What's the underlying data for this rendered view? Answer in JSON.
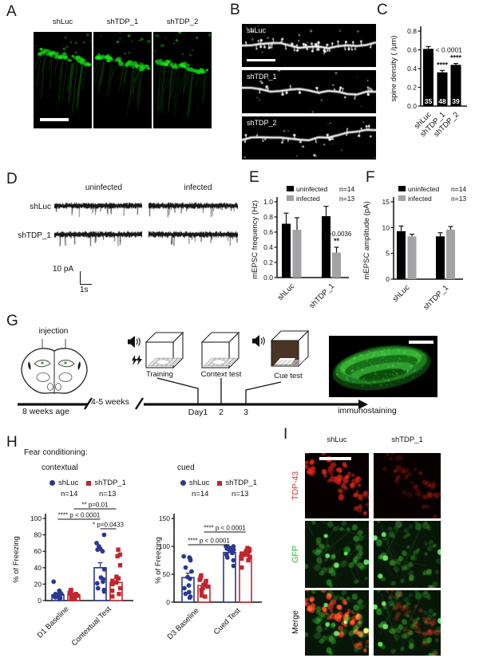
{
  "colors": {
    "blue": "#2b3990",
    "red": "#c1272d",
    "gray": "#a3a3a6",
    "black": "#000000",
    "green_label": "#2db52d",
    "red_label": "#e03232"
  },
  "panels": {
    "A": {
      "letter": "A",
      "titles": [
        "shLuc",
        "shTDP_1",
        "shTDP_2"
      ]
    },
    "B": {
      "letter": "B",
      "labels": [
        "shLuc",
        "shTDP_1",
        "shTDP_2"
      ]
    },
    "C": {
      "letter": "C"
    },
    "D": {
      "letter": "D",
      "col_labels": [
        "uninfected",
        "infected"
      ],
      "row_labels": [
        "shLuc",
        "shTDP_1"
      ],
      "scale_v": "10 pA",
      "scale_h": "1s"
    },
    "E": {
      "letter": "E"
    },
    "F": {
      "letter": "F"
    },
    "G": {
      "letter": "G",
      "injection": "injection",
      "age": "8 weeks age",
      "interval": "4-5 weeks",
      "boxes": [
        "Training",
        "Context test",
        "Cue test"
      ],
      "days": [
        "Day1",
        "2",
        "3"
      ],
      "immuno": "immunostaining"
    },
    "H": {
      "letter": "H",
      "title": "Fear conditioning:",
      "sub_left": "contextual",
      "sub_right": "cued",
      "legend": {
        "shLuc": "shLuc",
        "shTDP": "shTDP_1",
        "n_shLuc": "n=14",
        "n_shTDP": "n=13"
      }
    },
    "I": {
      "letter": "I",
      "col_titles": [
        "shLuc",
        "shTDP_1"
      ],
      "row_labels": [
        "TDP-43",
        "GFP",
        "Merge"
      ]
    }
  },
  "chart_data": [
    {
      "id": "chartC",
      "type": "bar",
      "ylabel": "spine density ( /μm)",
      "ylim": [
        0,
        0.8
      ],
      "yticks": [
        0,
        0.2,
        0.4,
        0.6,
        0.8
      ],
      "ytick_labels": [
        "0.0",
        "0.2",
        "0.4",
        "0.6",
        "0.8"
      ],
      "categories": [
        "shLuc",
        "shTDP_1",
        "shTDP_2"
      ],
      "values": [
        0.61,
        0.36,
        0.44
      ],
      "errors": [
        0.025,
        0.02,
        0.015
      ],
      "bar_labels": [
        "35",
        "48",
        "39"
      ],
      "bar_color": "#000000",
      "annotations": {
        "p_text": "p < 0.0001",
        "stars": [
          "",
          "****",
          "****"
        ]
      }
    },
    {
      "id": "chartE",
      "type": "grouped_bar",
      "ylabel": "mEPSC frequency (Hz)",
      "ylim": [
        0,
        1.0
      ],
      "yticks": [
        0,
        0.2,
        0.4,
        0.6,
        0.8,
        1.0
      ],
      "ytick_labels": [
        "0.0",
        "0.2",
        "0.4",
        "0.6",
        "0.8",
        "1.0"
      ],
      "categories": [
        "shLuc",
        "shTDP_1"
      ],
      "series": [
        {
          "name": "uninfected",
          "n": "n=14",
          "color": "#000000",
          "values": [
            0.71,
            0.81
          ],
          "errors": [
            0.14,
            0.13
          ]
        },
        {
          "name": "infected",
          "n": "n=13",
          "color": "#a3a3a6",
          "values": [
            0.63,
            0.33
          ],
          "errors": [
            0.16,
            0.07
          ]
        }
      ],
      "annotation": {
        "text": "p=0.0036",
        "stars": "**",
        "cat": 1,
        "series": 1
      }
    },
    {
      "id": "chartF",
      "type": "grouped_bar",
      "ylabel": "mEPSC amplitude (pA)",
      "ylim": [
        0,
        15
      ],
      "yticks": [
        0,
        5,
        10,
        15
      ],
      "ytick_labels": [
        "0",
        "5",
        "10",
        "15"
      ],
      "categories": [
        "shLuc",
        "shTDP_1"
      ],
      "series": [
        {
          "name": "uninfected",
          "n": "n=14",
          "color": "#000000",
          "values": [
            9.3,
            8.3
          ],
          "errors": [
            1.0,
            0.7
          ]
        },
        {
          "name": "infected",
          "n": "n=13",
          "color": "#a3a3a6",
          "values": [
            8.3,
            9.6
          ],
          "errors": [
            0.4,
            0.6
          ]
        }
      ],
      "annotation": null
    },
    {
      "id": "chartH1",
      "type": "scatter_bar",
      "ylabel": "% of Freezing",
      "ylim": [
        0,
        100
      ],
      "yticks": [
        0,
        20,
        40,
        60,
        80,
        100
      ],
      "ytick_labels": [
        "0",
        "20",
        "40",
        "60",
        "80",
        "100"
      ],
      "categories": [
        "D1 Baseline",
        "Contextual Test"
      ],
      "series": [
        {
          "name": "shLuc",
          "marker": "circle",
          "color": "#2b3990",
          "means": [
            7,
            40
          ],
          "errors": [
            1.5,
            6
          ],
          "points": [
            [
              2,
              3,
              4,
              5,
              5,
              6,
              7,
              7,
              8,
              8,
              9,
              10,
              12,
              23
            ],
            [
              11,
              13,
              15,
              21,
              23,
              26,
              28,
              38,
              60,
              62,
              63,
              66,
              70,
              80
            ]
          ]
        },
        {
          "name": "shTDP_1",
          "marker": "square",
          "color": "#c1272d",
          "means": [
            7,
            22
          ],
          "errors": [
            1.5,
            5
          ],
          "points": [
            [
              2,
              2,
              3,
              4,
              5,
              6,
              7,
              7,
              8,
              9,
              10,
              12,
              13
            ],
            [
              5,
              8,
              12,
              15,
              20,
              22,
              24,
              27,
              29,
              43,
              54,
              56,
              62
            ]
          ]
        }
      ],
      "sig": [
        {
          "text": "** p=0.01",
          "a": [
            0,
            1
          ],
          "b": [
            1,
            1
          ],
          "row": 0
        },
        {
          "text": "**** p < 0.0001",
          "a": [
            0,
            0
          ],
          "b": [
            1,
            0
          ],
          "row": 1
        },
        {
          "text": "* p=0.0433",
          "a": [
            1,
            0
          ],
          "b": [
            1,
            1
          ],
          "row": 2
        }
      ]
    },
    {
      "id": "chartH2",
      "type": "scatter_bar",
      "ylabel": "% of Freezing",
      "ylim": [
        0,
        150
      ],
      "yticks": [
        0,
        50,
        100,
        150
      ],
      "ytick_labels": [
        "0",
        "50",
        "100",
        "150"
      ],
      "categories": [
        "D3 Baseline",
        "Cued Test"
      ],
      "series": [
        {
          "name": "shLuc",
          "marker": "circle",
          "color": "#2b3990",
          "means": [
            44,
            89
          ],
          "errors": [
            8,
            3
          ],
          "points": [
            [
              8,
              10,
              15,
              18,
              25,
              30,
              42,
              45,
              55,
              62,
              75,
              78,
              80,
              82
            ],
            [
              65,
              75,
              80,
              85,
              88,
              90,
              92,
              94,
              95,
              96,
              97,
              98,
              100,
              100
            ]
          ]
        },
        {
          "name": "shTDP_1",
          "marker": "square",
          "color": "#c1272d",
          "means": [
            30,
            84
          ],
          "errors": [
            4,
            3
          ],
          "points": [
            [
              10,
              12,
              18,
              22,
              25,
              28,
              30,
              35,
              38,
              40,
              43,
              45,
              48
            ],
            [
              62,
              75,
              78,
              80,
              83,
              85,
              87,
              88,
              90,
              92,
              93,
              95,
              97
            ]
          ]
        }
      ],
      "sig": [
        {
          "text": "**** p < 0.0001",
          "a": [
            0,
            1
          ],
          "b": [
            1,
            1
          ],
          "row": 0
        },
        {
          "text": "**** p < 0.0001",
          "a": [
            0,
            0
          ],
          "b": [
            1,
            0
          ],
          "row": 1
        }
      ]
    }
  ]
}
